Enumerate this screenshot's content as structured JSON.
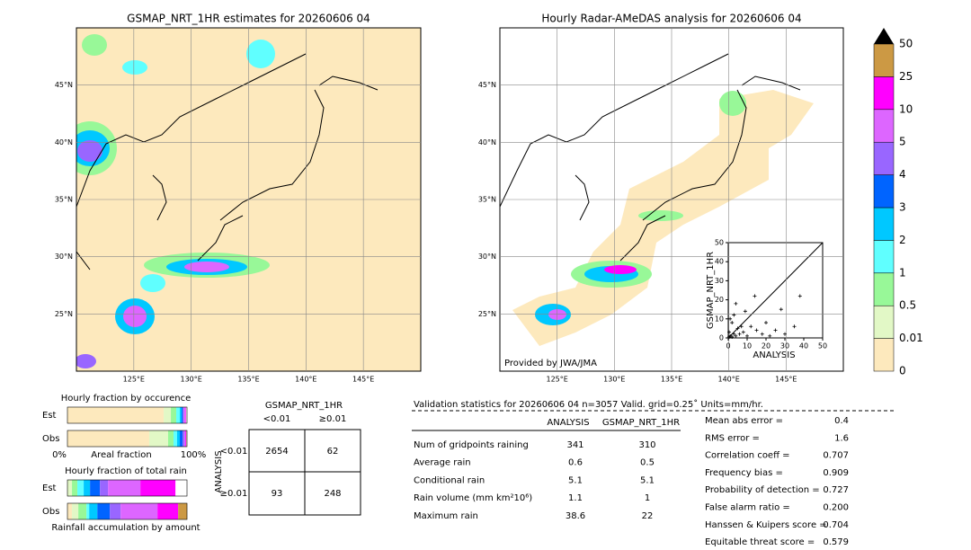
{
  "left_map": {
    "title": "GSMAP_NRT_1HR estimates for 20260606 04",
    "xlim": [
      120,
      150
    ],
    "ylim": [
      20,
      50
    ],
    "xticks": [
      {
        "value": 125,
        "label": "125°E"
      },
      {
        "value": 130,
        "label": "130°E"
      },
      {
        "value": 135,
        "label": "135°E"
      },
      {
        "value": 140,
        "label": "140°E"
      },
      {
        "value": 145,
        "label": "145°E"
      }
    ],
    "yticks": [
      {
        "value": 25,
        "label": "25°N"
      },
      {
        "value": 30,
        "label": "30°N"
      },
      {
        "value": 35,
        "label": "35°N"
      },
      {
        "value": 40,
        "label": "40°N"
      },
      {
        "value": 45,
        "label": "45°N"
      }
    ]
  },
  "right_map": {
    "title": "Hourly Radar-AMeDAS analysis for 20260606 04",
    "credit": "Provided by JWA/JMA",
    "xlim": [
      120,
      150
    ],
    "ylim": [
      20,
      50
    ],
    "xticks": [
      {
        "value": 125,
        "label": "125°E"
      },
      {
        "value": 130,
        "label": "130°E"
      },
      {
        "value": 135,
        "label": "135°E"
      },
      {
        "value": 140,
        "label": "140°E"
      },
      {
        "value": 145,
        "label": "145°E"
      }
    ],
    "yticks": [
      {
        "value": 25,
        "label": "25°N"
      },
      {
        "value": 30,
        "label": "30°N"
      },
      {
        "value": 35,
        "label": "35°N"
      },
      {
        "value": 40,
        "label": "40°N"
      },
      {
        "value": 45,
        "label": "45°N"
      }
    ]
  },
  "scatter": {
    "type": "scatter",
    "xlabel": "ANALYSIS",
    "ylabel": "GSMAP_NRT_1HR",
    "xlim": [
      0,
      50
    ],
    "ylim": [
      0,
      50
    ],
    "xticks": [
      0,
      10,
      20,
      30,
      40,
      50
    ],
    "yticks": [
      0,
      10,
      20,
      30,
      40,
      50
    ],
    "x": [
      1,
      2,
      3,
      0.5,
      4,
      5,
      6,
      2,
      8,
      10,
      3,
      12,
      15,
      18,
      20,
      22,
      25,
      28,
      30,
      35,
      38,
      1,
      4,
      9,
      14,
      7,
      0.5
    ],
    "y": [
      1,
      0.5,
      2,
      3,
      1,
      5,
      2,
      8,
      3,
      1,
      12,
      6,
      4,
      2,
      8,
      1,
      4,
      15,
      2,
      6,
      22,
      10,
      18,
      14,
      22,
      6,
      0.5
    ]
  },
  "colorbar": {
    "bounds": [
      0,
      0.01,
      0.5,
      1,
      2,
      3,
      4,
      5,
      10,
      25,
      50
    ],
    "colors": [
      "#fde9bd",
      "#e2f8c6",
      "#98f898",
      "#60ffff",
      "#00c8ff",
      "#0064ff",
      "#9966ff",
      "#dd66ff",
      "#ff00ff",
      "#cc9944"
    ]
  },
  "occurrence": {
    "title": "Hourly fraction by occurence",
    "categories": [
      "Est",
      "Obs"
    ],
    "xlabel": "Areal fraction",
    "xticks": [
      {
        "value": 0,
        "label": "0%"
      },
      {
        "value": 100,
        "label": "100%"
      }
    ],
    "values": [
      [
        80.5,
        6,
        4.5,
        3,
        1.5,
        1,
        1,
        0.8,
        0.7,
        0
      ],
      [
        68.4,
        15.8,
        4.5,
        3,
        2.3,
        2.3,
        1.5,
        0.8,
        0.7,
        0.2
      ]
    ]
  },
  "total_rain": {
    "title": "Hourly fraction of total rain",
    "categories": [
      "Est",
      "Obs"
    ],
    "xlabel": "Rainfall accumulation by amount",
    "values": [
      [
        0,
        3.8,
        4.5,
        5.3,
        5.3,
        8.3,
        6.8,
        27,
        29.3,
        0
      ],
      [
        3.8,
        5.3,
        6.8,
        2.3,
        6.8,
        10.5,
        9,
        30.8,
        17.3,
        7.5
      ]
    ]
  },
  "contingency": {
    "header": "GSMAP_NRT_1HR",
    "columns": [
      "<0.01",
      "≥0.01"
    ],
    "row_header": "ANALYSIS",
    "rows": [
      "<0.01",
      "≥0.01"
    ],
    "cells": [
      [
        2654,
        62
      ],
      [
        93,
        248
      ]
    ]
  },
  "validation": {
    "title": "Validation statistics for 20260606 04  n=3057 Valid. grid=0.25˚ Units=mm/hr.",
    "columns": [
      "ANALYSIS",
      "GSMAP_NRT_1HR"
    ],
    "rows": [
      [
        "Num of gridpoints raining",
        341,
        310
      ],
      [
        "Average rain",
        0.6,
        0.5
      ],
      [
        "Conditional rain",
        5.1,
        5.1
      ],
      [
        "Rain volume (mm km²10⁶)",
        1.1,
        1.0
      ],
      [
        "Maximum rain",
        38.6,
        22.0
      ]
    ],
    "scores": [
      [
        "Mean abs error =",
        0.4
      ],
      [
        "RMS error =",
        1.6
      ],
      [
        "Correlation coeff =",
        0.707
      ],
      [
        "Frequency bias =",
        0.909
      ],
      [
        "Probability of detection =",
        0.727
      ],
      [
        "False alarm ratio =",
        "0.200"
      ],
      [
        "Hanssen & Kuipers score =",
        0.704
      ],
      [
        "Equitable threat score =",
        0.579
      ]
    ]
  }
}
